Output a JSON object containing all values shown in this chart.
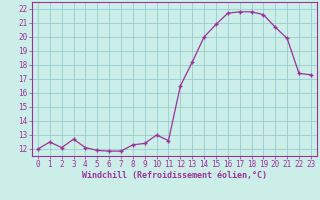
{
  "x": [
    0,
    1,
    2,
    3,
    4,
    5,
    6,
    7,
    8,
    9,
    10,
    11,
    12,
    13,
    14,
    15,
    16,
    17,
    18,
    19,
    20,
    21,
    22,
    23
  ],
  "y": [
    12.0,
    12.5,
    12.1,
    12.7,
    12.1,
    11.9,
    11.85,
    11.85,
    12.3,
    12.4,
    13.0,
    12.6,
    16.5,
    18.2,
    20.0,
    20.9,
    21.7,
    21.8,
    21.8,
    21.6,
    20.7,
    19.9,
    17.4,
    17.3
  ],
  "line_color": "#993399",
  "marker": "+",
  "bg_color": "#cceee8",
  "grid_color": "#99cccc",
  "xlabel": "Windchill (Refroidissement éolien,°C)",
  "xlabel_color": "#993399",
  "tick_color": "#993399",
  "spine_color": "#993399",
  "ylim": [
    11.5,
    22.5
  ],
  "xlim": [
    -0.5,
    23.5
  ],
  "yticks": [
    12,
    13,
    14,
    15,
    16,
    17,
    18,
    19,
    20,
    21,
    22
  ],
  "xticks": [
    0,
    1,
    2,
    3,
    4,
    5,
    6,
    7,
    8,
    9,
    10,
    11,
    12,
    13,
    14,
    15,
    16,
    17,
    18,
    19,
    20,
    21,
    22,
    23
  ],
  "tick_fontsize": 5.5,
  "xlabel_fontsize": 6.0,
  "marker_size": 3,
  "line_width": 0.9
}
